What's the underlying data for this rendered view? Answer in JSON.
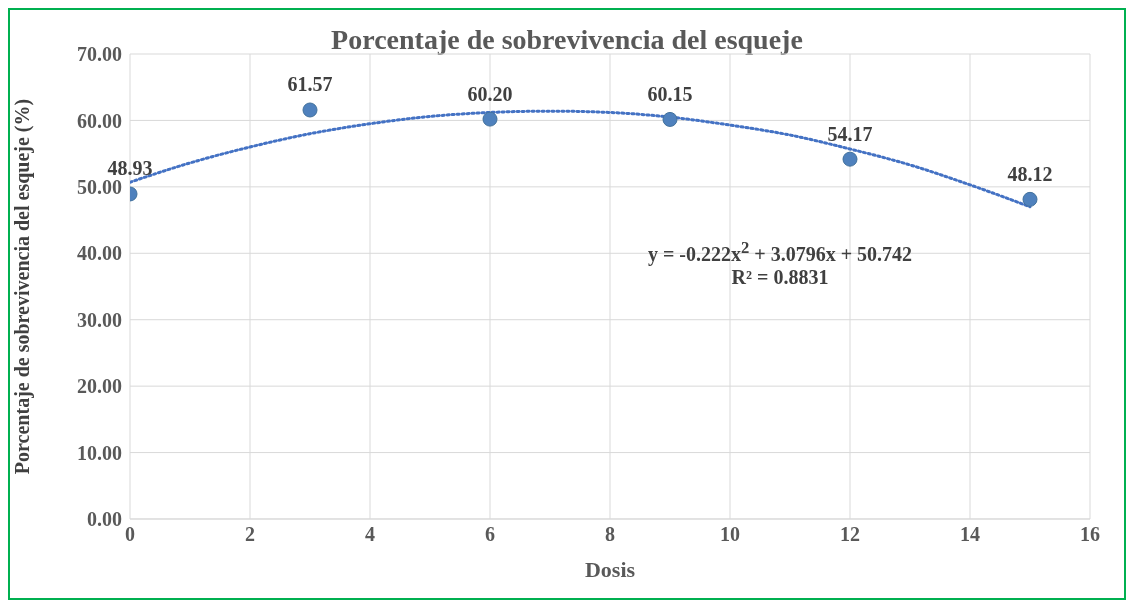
{
  "chart_data": {
    "type": "scatter",
    "title": "Porcentaje de sobrevivencia del esqueje",
    "xlabel": "Dosis",
    "ylabel": "Porcentaje de sobrevivencia del esqueje (%)",
    "xlim": [
      0,
      16
    ],
    "xticks": [
      0,
      2,
      4,
      6,
      8,
      10,
      12,
      14,
      16
    ],
    "ylim": [
      0,
      70
    ],
    "yticks": [
      {
        "value": 0,
        "label": "0.00"
      },
      {
        "value": 10,
        "label": "10.00"
      },
      {
        "value": 20,
        "label": "20.00"
      },
      {
        "value": 30,
        "label": "30.00"
      },
      {
        "value": 40,
        "label": "40.00"
      },
      {
        "value": 50,
        "label": "50.00"
      },
      {
        "value": 60,
        "label": "60.00"
      },
      {
        "value": 70,
        "label": "70.00"
      }
    ],
    "grid": true,
    "marker": "circle",
    "series": [
      {
        "color": "#4f81bd",
        "x": [
          0,
          3,
          6,
          9,
          12,
          15
        ],
        "values": [
          48.93,
          61.57,
          60.2,
          60.15,
          54.17,
          48.12
        ],
        "value_labels": [
          "48.93",
          "61.57",
          "60.20",
          "60.15",
          "54.17",
          "48.12"
        ]
      },
      {
        "type": "line",
        "color": "#4472c4",
        "line_style": "dotted",
        "marker": "none",
        "x": [
          0,
          1,
          2,
          3,
          4,
          5,
          6,
          7,
          8,
          9,
          10,
          11,
          12,
          13,
          14,
          15
        ],
        "values": [
          50.7,
          53.6,
          56.0,
          58.0,
          59.5,
          60.6,
          61.2,
          61.4,
          61.2,
          60.5,
          59.3,
          57.8,
          55.7,
          53.3,
          50.3,
          47.0
        ]
      }
    ],
    "annotations": [
      "y = -0.222x$^{2}$ + 3.0796x + 50.742",
      "R² = 0.8831"
    ]
  }
}
